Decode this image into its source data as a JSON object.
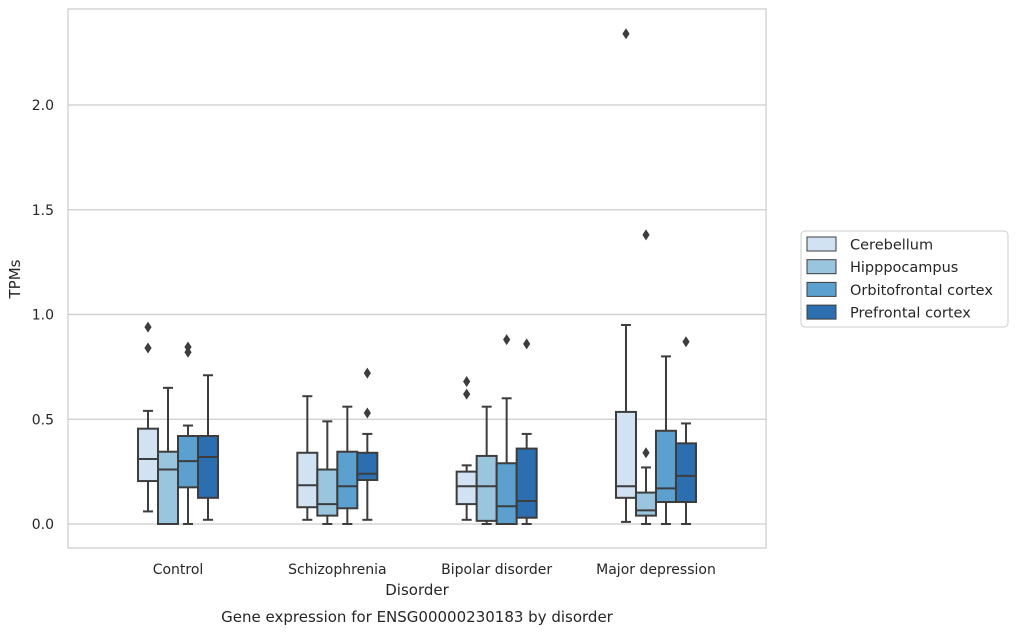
{
  "chart_data": {
    "type": "box",
    "title": "",
    "caption": "Gene expression for ENSG00000230183 by disorder",
    "xlabel": "Disorder",
    "ylabel": "TPMs",
    "ylim": [
      -0.11,
      2.46
    ],
    "yticks": [
      "0.0",
      "0.5",
      "1.0",
      "1.5",
      "2.0"
    ],
    "grid": "horizontal",
    "legend_position": "right",
    "categories": [
      "Control",
      "Schizophrenia",
      "Bipolar disorder",
      "Major depression"
    ],
    "series": [
      {
        "name": "Cerebellum",
        "color": "#d1e2f2",
        "boxes": [
          {
            "whislo": 0.06,
            "q1": 0.205,
            "med": 0.31,
            "q3": 0.455,
            "whishi": 0.54,
            "fliers": [
              0.84,
              0.94
            ]
          },
          {
            "whislo": 0.02,
            "q1": 0.08,
            "med": 0.185,
            "q3": 0.34,
            "whishi": 0.61,
            "fliers": []
          },
          {
            "whislo": 0.02,
            "q1": 0.095,
            "med": 0.18,
            "q3": 0.25,
            "whishi": 0.28,
            "fliers": [
              0.62,
              0.68
            ]
          },
          {
            "whislo": 0.01,
            "q1": 0.125,
            "med": 0.18,
            "q3": 0.535,
            "whishi": 0.95,
            "fliers": [
              2.34
            ]
          }
        ]
      },
      {
        "name": "Hipppocampus",
        "color": "#9ac5de",
        "boxes": [
          {
            "whislo": 0.0,
            "q1": 0.0,
            "med": 0.26,
            "q3": 0.345,
            "whishi": 0.65,
            "fliers": []
          },
          {
            "whislo": 0.0,
            "q1": 0.04,
            "med": 0.095,
            "q3": 0.26,
            "whishi": 0.49,
            "fliers": []
          },
          {
            "whislo": 0.0,
            "q1": 0.015,
            "med": 0.18,
            "q3": 0.325,
            "whishi": 0.56,
            "fliers": []
          },
          {
            "whislo": 0.0,
            "q1": 0.04,
            "med": 0.065,
            "q3": 0.15,
            "whishi": 0.27,
            "fliers": [
              0.34,
              1.38
            ]
          }
        ]
      },
      {
        "name": "Orbitofrontal cortex",
        "color": "#5ba0cf",
        "boxes": [
          {
            "whislo": 0.0,
            "q1": 0.175,
            "med": 0.3,
            "q3": 0.42,
            "whishi": 0.47,
            "fliers": [
              0.82,
              0.845
            ]
          },
          {
            "whislo": 0.0,
            "q1": 0.075,
            "med": 0.18,
            "q3": 0.345,
            "whishi": 0.56,
            "fliers": []
          },
          {
            "whislo": 0.0,
            "q1": 0.0,
            "med": 0.085,
            "q3": 0.29,
            "whishi": 0.6,
            "fliers": [
              0.88
            ]
          },
          {
            "whislo": 0.0,
            "q1": 0.105,
            "med": 0.17,
            "q3": 0.445,
            "whishi": 0.8,
            "fliers": []
          }
        ]
      },
      {
        "name": "Prefrontal cortex",
        "color": "#2b6fb1",
        "boxes": [
          {
            "whislo": 0.02,
            "q1": 0.125,
            "med": 0.32,
            "q3": 0.42,
            "whishi": 0.71,
            "fliers": []
          },
          {
            "whislo": 0.02,
            "q1": 0.21,
            "med": 0.24,
            "q3": 0.34,
            "whishi": 0.43,
            "fliers": [
              0.53,
              0.72
            ]
          },
          {
            "whislo": 0.0,
            "q1": 0.03,
            "med": 0.11,
            "q3": 0.36,
            "whishi": 0.43,
            "fliers": [
              0.86
            ]
          },
          {
            "whislo": 0.0,
            "q1": 0.105,
            "med": 0.23,
            "q3": 0.385,
            "whishi": 0.48,
            "fliers": [
              0.87
            ]
          }
        ]
      }
    ]
  }
}
